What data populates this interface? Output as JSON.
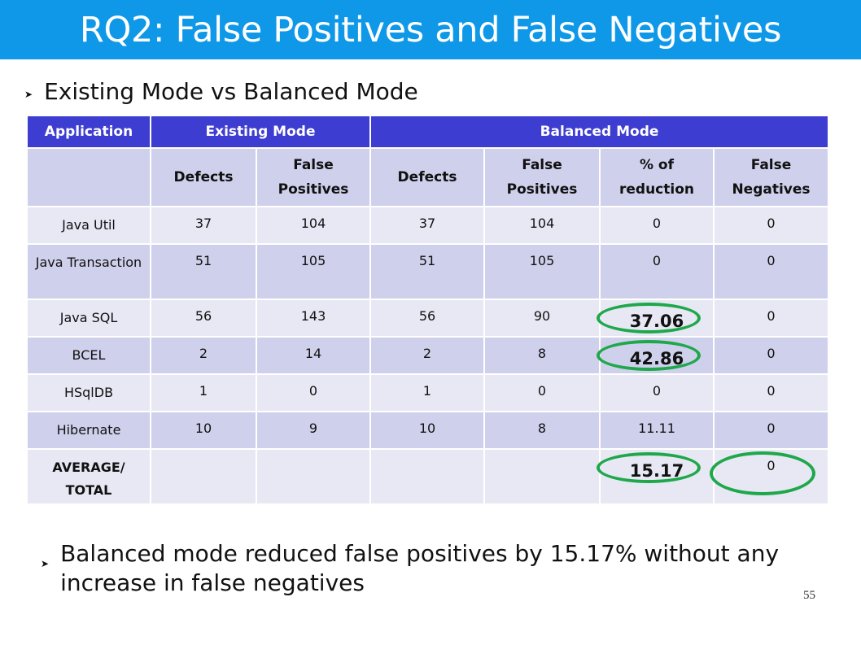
{
  "slide": {
    "title": "RQ2: False Positives and False Negatives",
    "bullet1": "Existing Mode vs Balanced Mode",
    "bullet2": "Balanced mode reduced false positives by 15.17% without any increase in false negatives",
    "page_number": "55",
    "bullet_icon": "arrow-bullet-icon",
    "highlight_color": "#1ea84a",
    "title_bar_color": "#0f98e8"
  },
  "table": {
    "groups": [
      "Application",
      "Existing Mode",
      "Balanced Mode"
    ],
    "subheaders": [
      "",
      "Defects",
      "False Positives",
      "Defects",
      "False Positives",
      "% of reduction",
      "False Negatives"
    ],
    "rows": [
      [
        "Java Util",
        "37",
        "104",
        "37",
        "104",
        "0",
        "0"
      ],
      [
        "Java Transaction",
        "51",
        "105",
        "51",
        "105",
        "0",
        "0"
      ],
      [
        "Java SQL",
        "56",
        "143",
        "56",
        "90",
        "37.06",
        "0"
      ],
      [
        "BCEL",
        "2",
        "14",
        "2",
        "8",
        "42.86",
        "0"
      ],
      [
        "HSqlDB",
        "1",
        "0",
        "1",
        "0",
        "0",
        "0"
      ],
      [
        "Hibernate",
        "10",
        "9",
        "10",
        "8",
        "11.11",
        "0"
      ],
      [
        "AVERAGE/ TOTAL",
        "",
        "",
        "",
        "",
        "15.17",
        "0"
      ]
    ]
  }
}
